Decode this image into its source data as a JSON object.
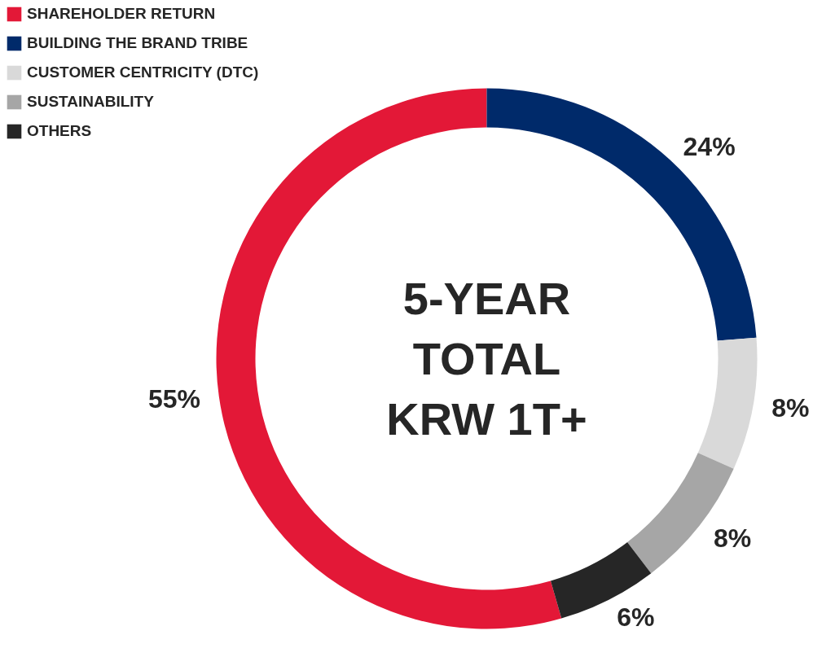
{
  "chart_data": {
    "type": "donut",
    "categories": [
      "SHAREHOLDER RETURN",
      "BUILDING THE BRAND TRIBE",
      "CUSTOMER CENTRICITY (DTC)",
      "SUSTAINABILITY",
      "OTHERS"
    ],
    "values": [
      55,
      24,
      8,
      8,
      6
    ],
    "colors": [
      "#e31837",
      "#002a6a",
      "#d9d9d9",
      "#a6a6a6",
      "#262626"
    ],
    "value_labels": [
      "55%",
      "24%",
      "8%",
      "8%",
      "6%"
    ],
    "annotations": [
      "5-YEAR",
      "TOTAL",
      "KRW 1T+"
    ],
    "legend": "top left"
  }
}
